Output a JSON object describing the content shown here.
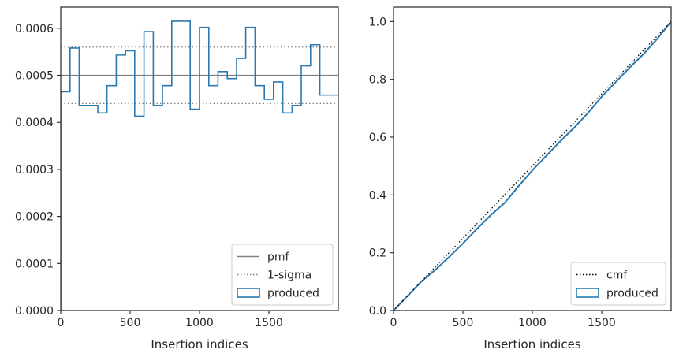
{
  "chart_data": [
    {
      "type": "step-histogram",
      "xlabel": "Insertion indices",
      "ylabel": "",
      "xlim": [
        0,
        2000
      ],
      "ylim": [
        0,
        0.000645
      ],
      "xticks": [
        0,
        500,
        1000,
        1500
      ],
      "xtick_labels": [
        "0",
        "500",
        "1000",
        "1500"
      ],
      "yticks": [
        0,
        0.0001,
        0.0002,
        0.0003,
        0.0004,
        0.0005,
        0.0006
      ],
      "ytick_labels": [
        "0.0000",
        "0.0001",
        "0.0002",
        "0.0003",
        "0.0004",
        "0.0005",
        "0.0006"
      ],
      "grid": false,
      "legend_position": "bottom-right",
      "legend": [
        {
          "label": "pmf",
          "style": "solid",
          "color": "#808080"
        },
        {
          "label": "1-sigma",
          "style": "dotted",
          "color": "#808080"
        },
        {
          "label": "produced",
          "style": "box",
          "color": "#2a7ab0"
        }
      ],
      "reference_lines": {
        "pmf": 0.0005,
        "sigma_upper": 0.00056,
        "sigma_lower": 0.00044
      },
      "bin_edges": [
        0,
        67,
        133,
        200,
        267,
        333,
        400,
        467,
        533,
        600,
        667,
        733,
        800,
        867,
        933,
        1000,
        1067,
        1133,
        1200,
        1267,
        1333,
        1400,
        1467,
        1533,
        1600,
        1667,
        1733,
        1800,
        1867,
        1933,
        2000
      ],
      "series": [
        {
          "name": "produced",
          "values": [
            0.000465,
            0.000558,
            0.000436,
            0.000436,
            0.00042,
            0.000478,
            0.000543,
            0.000552,
            0.000413,
            0.000593,
            0.000436,
            0.000478,
            0.000615,
            0.000615,
            0.000428,
            0.000602,
            0.000478,
            0.000508,
            0.000493,
            0.000536,
            0.000602,
            0.000478,
            0.000449,
            0.000486,
            0.00042,
            0.000436,
            0.00052,
            0.000565,
            0.000458,
            0.000458
          ]
        }
      ]
    },
    {
      "type": "line",
      "xlabel": "Insertion indices",
      "ylabel": "",
      "xlim": [
        0,
        2000
      ],
      "ylim": [
        0,
        1.05
      ],
      "xticks": [
        0,
        500,
        1000,
        1500
      ],
      "xtick_labels": [
        "0",
        "500",
        "1000",
        "1500"
      ],
      "yticks": [
        0,
        0.2,
        0.4,
        0.6,
        0.8,
        1.0
      ],
      "ytick_labels": [
        "0.0",
        "0.2",
        "0.4",
        "0.6",
        "0.8",
        "1.0"
      ],
      "grid": false,
      "legend_position": "bottom-right",
      "legend": [
        {
          "label": "cmf",
          "style": "dotted",
          "color": "#000000"
        },
        {
          "label": "produced",
          "style": "box",
          "color": "#2a7ab0"
        }
      ],
      "series": [
        {
          "name": "cmf",
          "x": [
            0,
            2000
          ],
          "y": [
            0,
            1.0
          ]
        },
        {
          "name": "produced",
          "x": [
            0,
            100,
            200,
            300,
            400,
            500,
            600,
            700,
            800,
            900,
            1000,
            1100,
            1200,
            1300,
            1400,
            1500,
            1600,
            1700,
            1800,
            1900,
            2000
          ],
          "y": [
            0,
            0.05,
            0.1,
            0.14,
            0.185,
            0.232,
            0.282,
            0.33,
            0.372,
            0.43,
            0.485,
            0.535,
            0.585,
            0.632,
            0.683,
            0.74,
            0.79,
            0.84,
            0.887,
            0.94,
            1.0
          ]
        }
      ]
    }
  ]
}
